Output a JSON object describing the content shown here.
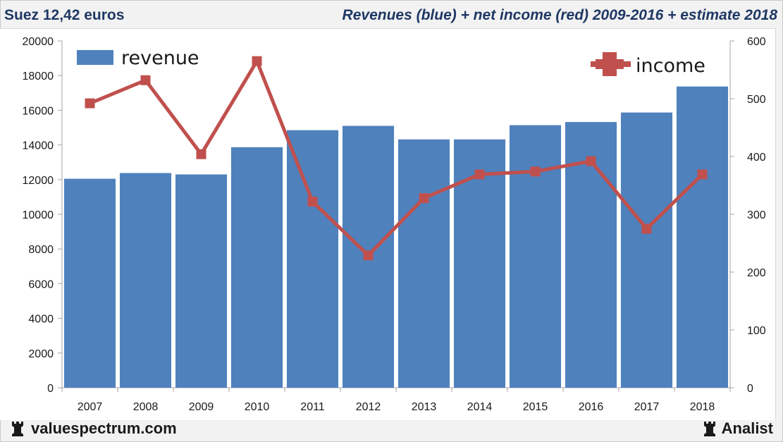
{
  "header": {
    "left_title": "Suez 12,42 euros",
    "right_title": "Revenues (blue) + net income (red) 2009-2016 + estimate 2018"
  },
  "footer": {
    "site": "valuespectrum.com",
    "brand": "Analist",
    "site_icon": "rook-icon",
    "brand_icon": "rook-icon"
  },
  "colors": {
    "bar": "#4f81bd",
    "line": "#c0504d",
    "grid_bg": "#ffffff",
    "title": "#1f3864"
  },
  "chart_data": {
    "type": "bar+line",
    "title": "Revenues (blue) + net income (red) 2009-2016 + estimate 2018",
    "categories": [
      "2007",
      "2008",
      "2009",
      "2010",
      "2011",
      "2012",
      "2013",
      "2014",
      "2015",
      "2016",
      "2017",
      "2018"
    ],
    "series": [
      {
        "name": "revenue",
        "type": "bar",
        "axis": "left",
        "values": [
          12050,
          12380,
          12300,
          13870,
          14850,
          15100,
          14320,
          14320,
          15140,
          15320,
          15870,
          17370
        ]
      },
      {
        "name": "income",
        "type": "line",
        "axis": "right",
        "values": [
          492,
          532,
          404,
          565,
          322,
          229,
          328,
          369,
          374,
          392,
          275,
          369
        ]
      }
    ],
    "y_left": {
      "min": 0,
      "max": 20000,
      "step": 2000,
      "ticks": [
        "0",
        "2000",
        "4000",
        "6000",
        "8000",
        "10000",
        "12000",
        "14000",
        "16000",
        "18000",
        "20000"
      ]
    },
    "y_right": {
      "min": 0,
      "max": 600,
      "step": 100,
      "ticks": [
        "0",
        "100",
        "200",
        "300",
        "400",
        "500",
        "600"
      ]
    },
    "legend": [
      {
        "label": "revenue",
        "position": "top-left"
      },
      {
        "label": "income",
        "position": "top-right"
      }
    ],
    "grid": false
  }
}
